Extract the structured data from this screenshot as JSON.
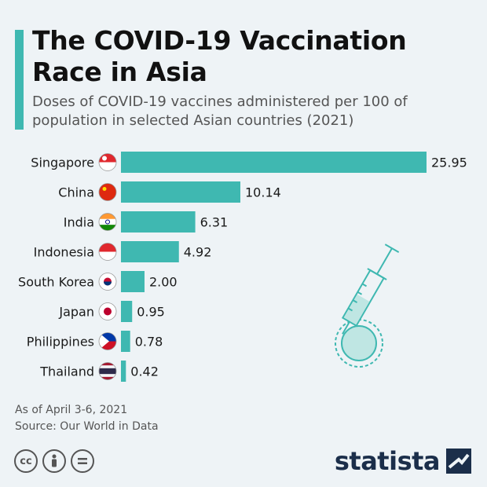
{
  "header": {
    "title": "The COVID-19 Vaccination Race in Asia",
    "subtitle": "Doses of COVID-19 vaccines administered per 100 of population in selected Asian countries (2021)"
  },
  "colors": {
    "accent": "#3fb8b1",
    "bar": "#3fb8b1",
    "brand": "#1b2e4a"
  },
  "chart_data": {
    "type": "bar",
    "orientation": "horizontal",
    "title": "The COVID-19 Vaccination Race in Asia",
    "categories": [
      "Singapore",
      "China",
      "India",
      "Indonesia",
      "South Korea",
      "Japan",
      "Philippines",
      "Thailand"
    ],
    "values": [
      25.95,
      10.14,
      6.31,
      4.92,
      2.0,
      0.95,
      0.78,
      0.42
    ],
    "value_labels": [
      "25.95",
      "10.14",
      "6.31",
      "4.92",
      "2.00",
      "0.95",
      "0.78",
      "0.42"
    ],
    "flags": [
      "singapore-flag-icon",
      "china-flag-icon",
      "india-flag-icon",
      "indonesia-flag-icon",
      "south-korea-flag-icon",
      "japan-flag-icon",
      "philippines-flag-icon",
      "thailand-flag-icon"
    ],
    "xlabel": "",
    "ylabel": "",
    "xlim": [
      0,
      25.95
    ],
    "grid": false,
    "legend": "none"
  },
  "footer": {
    "note1": "As of April 3-6, 2021",
    "note2": "Source: Our World in Data",
    "brand": "statista"
  }
}
